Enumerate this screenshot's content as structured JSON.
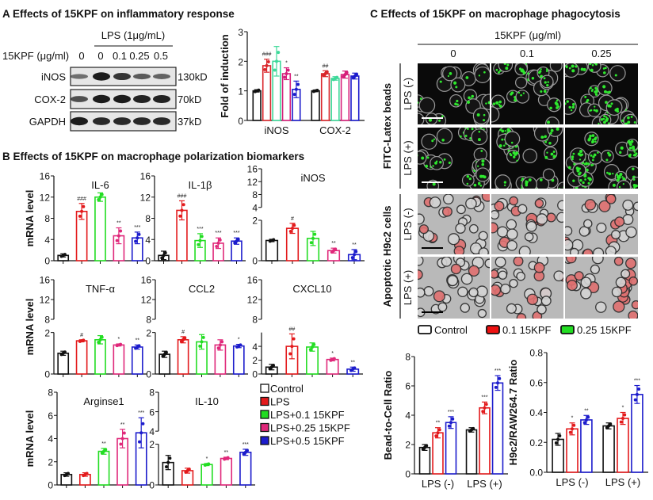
{
  "panel_a": {
    "title": "A Effects of 15KPF on inflammatory response",
    "blot": {
      "lps_label": "LPS (1μg/mL)",
      "dose_label": "15KPF (μg/ml)",
      "doses": [
        "0",
        "0",
        "0.1",
        "0.25",
        "0.5"
      ],
      "rows": [
        {
          "protein": "iNOS",
          "size": "130kD",
          "band_intensity": [
            0.35,
            1.0,
            0.8,
            0.5,
            0.45
          ]
        },
        {
          "protein": "COX-2",
          "size": "70kD",
          "band_intensity": [
            0.6,
            1.0,
            1.0,
            0.95,
            0.95
          ]
        },
        {
          "protein": "GAPDH",
          "size": "37kD",
          "band_intensity": [
            1.0,
            0.9,
            0.9,
            0.9,
            0.9
          ]
        }
      ]
    }
  },
  "panel_b": {
    "title": "B Effects of 15KPF on macrophage polarization biomarkers",
    "ylabel": "mRNA level",
    "legend": [
      {
        "label": "Control",
        "color": "#111111"
      },
      {
        "label": "LPS",
        "color": "#e31a1c"
      },
      {
        "label": "LPS+0.1 15KPF",
        "color": "#22dd22"
      },
      {
        "label": "LPS+0.25 15KPF",
        "color": "#e0287a"
      },
      {
        "label": "LPS+0.5 15KPF",
        "color": "#1c1ccc"
      }
    ]
  },
  "panel_c": {
    "title": "C Effects of 15KPF on macrophage phagocytosis",
    "dose_header": "15KPF (μg/ml)",
    "doses": [
      "0",
      "0.1",
      "0.25"
    ],
    "groups": [
      {
        "label": "FITC-Latex beads",
        "rows": [
          "LPS (-)",
          "LPS (+)"
        ],
        "stain": "green"
      },
      {
        "label": "Apoptotic H9c2 cells",
        "rows": [
          "LPS (-)",
          "LPS (+)"
        ],
        "stain": "red"
      }
    ],
    "legend": [
      {
        "label": "Control",
        "color": "#111111",
        "fill": "#ffffff"
      },
      {
        "label": "0.1 15KPF",
        "color": "#111111",
        "fill": "#ee1111"
      },
      {
        "label": "0.25 15KPF",
        "color": "#111111",
        "fill": "#22dd22"
      }
    ]
  },
  "chart_data": [
    {
      "id": "fold",
      "type": "bar",
      "title": "",
      "ylabel": "Fold of induction",
      "groups": [
        "iNOS",
        "COX-2"
      ],
      "yaxis": {
        "segments": [
          {
            "range": [
              0,
              3
            ],
            "ticks": [
              0,
              1,
              2,
              3
            ]
          }
        ]
      },
      "series": [
        {
          "color": "#111111",
          "values": [
            1.0,
            1.0
          ],
          "sd": [
            0.04,
            0.03
          ],
          "sig": [
            "",
            ""
          ]
        },
        {
          "color": "#d9262b",
          "values": [
            1.85,
            1.58
          ],
          "sd": [
            0.22,
            0.1
          ],
          "sig": [
            "###",
            "##"
          ]
        },
        {
          "color": "#3ed99a",
          "values": [
            2.0,
            1.42
          ],
          "sd": [
            0.5,
            0.06
          ],
          "sig": [
            "",
            ""
          ]
        },
        {
          "color": "#d61f7a",
          "values": [
            1.58,
            1.55
          ],
          "sd": [
            0.2,
            0.12
          ],
          "sig": [
            "*",
            ""
          ]
        },
        {
          "color": "#1c1ccc",
          "values": [
            1.05,
            1.5
          ],
          "sd": [
            0.28,
            0.1
          ],
          "sig": [
            "**",
            ""
          ]
        }
      ]
    },
    {
      "id": "il6",
      "type": "bar",
      "title": "IL-6",
      "ylabel": "mRNA level",
      "categories": [
        "Control",
        "LPS",
        "LPS+0.1 15KPF",
        "LPS+0.25 15KPF",
        "LPS+0.5 15KPF"
      ],
      "yaxis": {
        "segments": [
          {
            "range": [
              0,
              16
            ],
            "ticks": [
              0,
              4,
              8,
              12,
              16
            ]
          }
        ]
      },
      "values": [
        1.0,
        9.3,
        12.0,
        4.7,
        4.3
      ],
      "sd": [
        0.3,
        1.5,
        0.8,
        1.5,
        1.1
      ],
      "sig": [
        "",
        "###",
        "",
        "**",
        "***"
      ]
    },
    {
      "id": "il1b",
      "type": "bar",
      "title": "IL-1β",
      "ylabel": "",
      "categories": [
        "Control",
        "LPS",
        "LPS+0.1 15KPF",
        "LPS+0.25 15KPF",
        "LPS+0.5 15KPF"
      ],
      "yaxis": {
        "segments": [
          {
            "range": [
              0,
              16
            ],
            "ticks": [
              0,
              4,
              8,
              12,
              16
            ]
          }
        ]
      },
      "values": [
        1.0,
        9.5,
        3.8,
        3.3,
        3.7
      ],
      "sd": [
        0.8,
        1.8,
        1.3,
        1.0,
        0.6
      ],
      "sig": [
        "",
        "###",
        "***",
        "***",
        "***"
      ]
    },
    {
      "id": "inos",
      "type": "bar",
      "title": "iNOS",
      "ylabel": "",
      "categories": [
        "Control",
        "LPS",
        "LPS+0.1 15KPF",
        "LPS+0.25 15KPF",
        "LPS+0.5 15KPF"
      ],
      "yaxis": {
        "segments": [
          {
            "range": [
              0,
              2
            ],
            "ticks": [
              0,
              2
            ]
          },
          {
            "range": [
              4,
              16
            ],
            "ticks": [
              4,
              8,
              12,
              16
            ]
          }
        ]
      },
      "values": [
        1.0,
        1.6,
        1.1,
        0.5,
        0.3
      ],
      "sd": [
        0.06,
        0.25,
        0.35,
        0.12,
        0.25
      ],
      "sig": [
        "",
        "#",
        "",
        "**",
        "**"
      ]
    },
    {
      "id": "tnfa",
      "type": "bar",
      "title": "TNF-α",
      "ylabel": "mRNA level",
      "categories": [
        "Control",
        "LPS",
        "LPS+0.1 15KPF",
        "LPS+0.25 15KPF",
        "LPS+0.5 15KPF"
      ],
      "yaxis": {
        "segments": [
          {
            "range": [
              0,
              2
            ],
            "ticks": [
              0,
              2
            ]
          },
          {
            "range": [
              8,
              16
            ],
            "ticks": [
              8,
              12,
              16
            ]
          }
        ]
      },
      "values": [
        1.0,
        1.6,
        1.65,
        1.4,
        1.3
      ],
      "sd": [
        0.1,
        0.05,
        0.2,
        0.05,
        0.1
      ],
      "sig": [
        "",
        "#",
        "",
        "*",
        "**"
      ]
    },
    {
      "id": "ccl2",
      "type": "bar",
      "title": "CCL2",
      "ylabel": "",
      "categories": [
        "Control",
        "LPS",
        "LPS+0.1 15KPF",
        "LPS+0.25 15KPF",
        "LPS+0.5 15KPF"
      ],
      "yaxis": {
        "segments": [
          {
            "range": [
              0,
              2
            ],
            "ticks": [
              0,
              2
            ]
          },
          {
            "range": [
              8,
              16
            ],
            "ticks": [
              8,
              12,
              16
            ]
          }
        ]
      },
      "values": [
        0.95,
        1.65,
        1.55,
        1.4,
        1.35
      ],
      "sd": [
        0.15,
        0.15,
        0.35,
        0.25,
        0.08
      ],
      "sig": [
        "",
        "#",
        "",
        "",
        "*"
      ]
    },
    {
      "id": "cxcl10",
      "type": "bar",
      "title": "CXCL10",
      "ylabel": "",
      "categories": [
        "Control",
        "LPS",
        "LPS+0.1 15KPF",
        "LPS+0.25 15KPF",
        "LPS+0.5 15KPF"
      ],
      "yaxis": {
        "segments": [
          {
            "range": [
              0,
              6
            ],
            "ticks": [
              0,
              2,
              4
            ]
          },
          {
            "range": [
              8,
              16
            ],
            "ticks": [
              8,
              12,
              16
            ]
          }
        ]
      },
      "values": [
        1.0,
        4.0,
        3.9,
        2.1,
        0.7
      ],
      "sd": [
        0.4,
        1.8,
        0.6,
        0.2,
        0.3
      ],
      "sig": [
        "",
        "##",
        "",
        "*",
        "**"
      ]
    },
    {
      "id": "arg1",
      "type": "bar",
      "title": "Arginse1",
      "ylabel": "mRNA level",
      "categories": [
        "Control",
        "LPS",
        "LPS+0.1 15KPF",
        "LPS+0.25 15KPF",
        "LPS+0.5 15KPF"
      ],
      "yaxis": {
        "segments": [
          {
            "range": [
              0,
              8
            ],
            "ticks": [
              0,
              2,
              4,
              6,
              8
            ]
          }
        ]
      },
      "values": [
        0.9,
        0.9,
        2.9,
        4.0,
        4.5
      ],
      "sd": [
        0.15,
        0.15,
        0.25,
        0.8,
        1.3
      ],
      "sig": [
        "",
        "",
        "**",
        "**",
        "***"
      ]
    },
    {
      "id": "il10",
      "type": "bar",
      "title": "IL-10",
      "ylabel": "",
      "categories": [
        "Control",
        "LPS",
        "LPS+0.1 15KPF",
        "LPS+0.25 15KPF",
        "LPS+0.5 15KPF"
      ],
      "yaxis": {
        "segments": [
          {
            "range": [
              0,
              2
            ],
            "ticks": [
              0,
              2
            ]
          },
          {
            "range": [
              4,
              8
            ],
            "ticks": [
              4,
              6,
              8
            ]
          }
        ]
      },
      "values": [
        1.1,
        0.7,
        1.0,
        1.3,
        1.6
      ],
      "sd": [
        0.35,
        0.12,
        0.05,
        0.06,
        0.15
      ],
      "sig": [
        "",
        "",
        "*",
        "**",
        "***"
      ]
    },
    {
      "id": "bead",
      "type": "bar",
      "title": "",
      "ylabel": "Bead-to-Cell Ratio",
      "groups": [
        "LPS (-)",
        "LPS (+)"
      ],
      "yaxis": {
        "segments": [
          {
            "range": [
              0,
              8
            ],
            "ticks": [
              0,
              2,
              4,
              6,
              8
            ]
          }
        ]
      },
      "series": [
        {
          "name": "Control",
          "color": "#111111",
          "values": [
            1.8,
            3.0
          ],
          "sd": [
            0.2,
            0.15
          ],
          "sig": [
            "",
            ""
          ]
        },
        {
          "name": "0.1 15KPF",
          "color": "#e31a1c",
          "values": [
            2.8,
            4.5
          ],
          "sd": [
            0.35,
            0.4
          ],
          "sig": [
            "**",
            "***"
          ]
        },
        {
          "name": "0.25 15KPF",
          "color": "#1c1ccc",
          "values": [
            3.5,
            6.2
          ],
          "sd": [
            0.4,
            0.5
          ],
          "sig": [
            "***",
            "***"
          ]
        }
      ]
    },
    {
      "id": "h9c2",
      "type": "bar",
      "title": "",
      "ylabel": "H9c2/RAW264.7 Ratio",
      "groups": [
        "LPS (-)",
        "LPS (+)"
      ],
      "yaxis": {
        "segments": [
          {
            "range": [
              0,
              0.8
            ],
            "ticks": [
              0.0,
              0.2,
              0.4,
              0.6,
              0.8
            ]
          }
        ]
      },
      "series": [
        {
          "name": "Control",
          "color": "#111111",
          "values": [
            0.22,
            0.31
          ],
          "sd": [
            0.04,
            0.02
          ],
          "sig": [
            "",
            ""
          ]
        },
        {
          "name": "0.1 15KPF",
          "color": "#e31a1c",
          "values": [
            0.29,
            0.36
          ],
          "sd": [
            0.04,
            0.04
          ],
          "sig": [
            "*",
            "*"
          ]
        },
        {
          "name": "0.25 15KPF",
          "color": "#1c1ccc",
          "values": [
            0.35,
            0.52
          ],
          "sd": [
            0.03,
            0.06
          ],
          "sig": [
            "**",
            "***"
          ]
        }
      ]
    }
  ]
}
